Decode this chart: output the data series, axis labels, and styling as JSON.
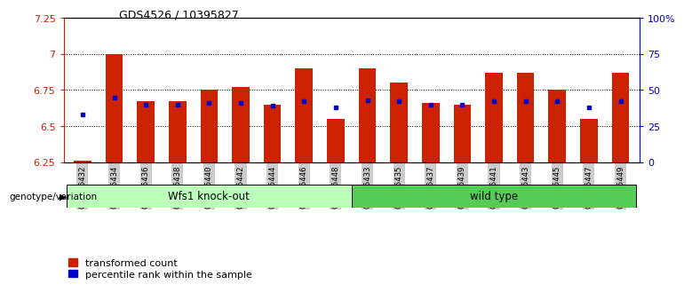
{
  "title": "GDS4526 / 10395827",
  "samples": [
    "GSM825432",
    "GSM825434",
    "GSM825436",
    "GSM825438",
    "GSM825440",
    "GSM825442",
    "GSM825444",
    "GSM825446",
    "GSM825448",
    "GSM825433",
    "GSM825435",
    "GSM825437",
    "GSM825439",
    "GSM825441",
    "GSM825443",
    "GSM825445",
    "GSM825447",
    "GSM825449"
  ],
  "red_values": [
    6.26,
    7.0,
    6.67,
    6.67,
    6.75,
    6.77,
    6.65,
    6.9,
    6.55,
    6.9,
    6.8,
    6.66,
    6.65,
    6.87,
    6.87,
    6.75,
    6.55,
    6.87
  ],
  "blue_values": [
    6.58,
    6.7,
    6.65,
    6.65,
    6.66,
    6.66,
    6.64,
    6.67,
    6.63,
    6.68,
    6.67,
    6.65,
    6.65,
    6.67,
    6.67,
    6.67,
    6.63,
    6.67
  ],
  "ymin": 6.25,
  "ymax": 7.25,
  "yticks": [
    6.25,
    6.5,
    6.75,
    7.0,
    7.25
  ],
  "ytick_labels": [
    "6.25",
    "6.5",
    "6.75",
    "7",
    "7.25"
  ],
  "right_yticks": [
    0,
    25,
    50,
    75,
    100
  ],
  "right_ytick_labels": [
    "0",
    "25",
    "50",
    "75",
    "100%"
  ],
  "group1_label": "Wfs1 knock-out",
  "group2_label": "wild type",
  "group1_count": 9,
  "group2_count": 9,
  "bar_color": "#cc2200",
  "dot_color": "#0000cc",
  "group1_bg": "#bbffbb",
  "group2_bg": "#55cc55",
  "legend_red": "transformed count",
  "legend_blue": "percentile rank within the sample",
  "xlabel_left": "genotype/variation",
  "left_axis_color": "#cc2200",
  "right_axis_color": "#0000cc",
  "tick_label_bg": "#cccccc"
}
